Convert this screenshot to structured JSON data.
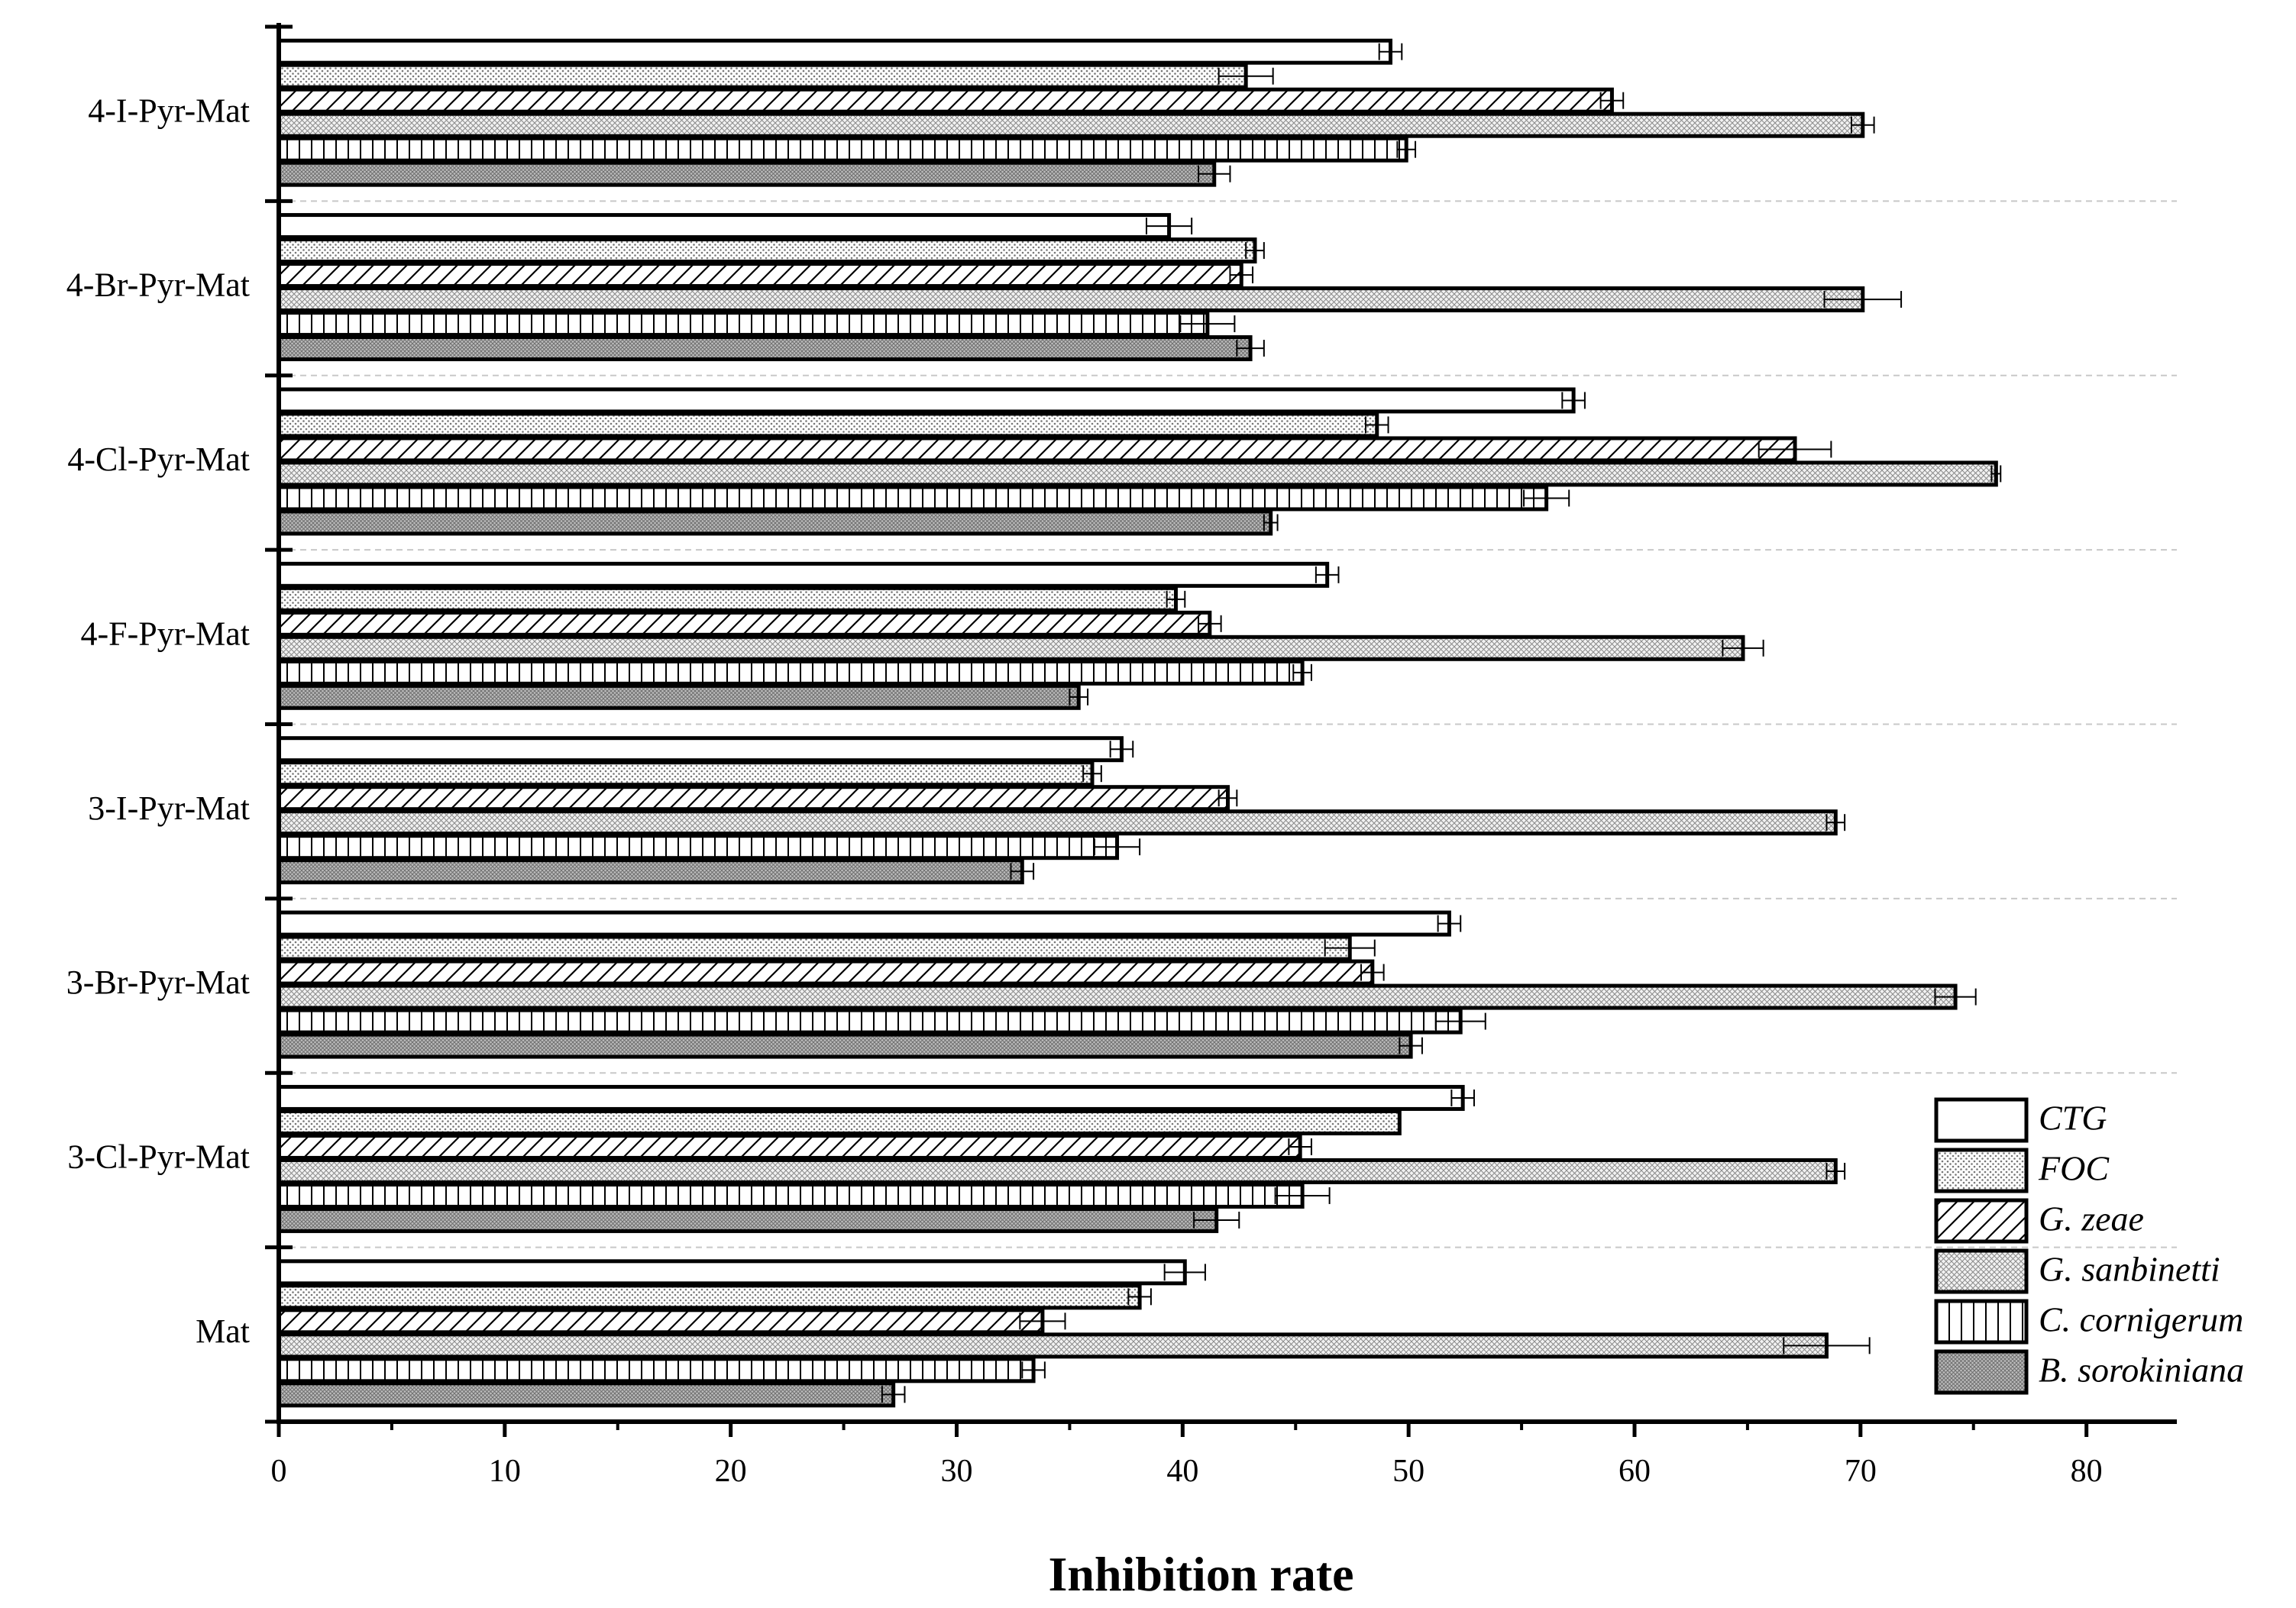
{
  "chart_data": {
    "type": "bar",
    "orientation": "horizontal",
    "xlabel": "Inhibition rate",
    "ylabel": "",
    "xlim": [
      0,
      84
    ],
    "xticks": [
      0,
      10,
      20,
      30,
      40,
      50,
      60,
      70,
      80
    ],
    "categories": [
      "4-I-Pyr-Mat",
      "4-Br-Pyr-Mat",
      "4-Cl-Pyr-Mat",
      "4-F-Pyr-Mat",
      "3-I-Pyr-Mat",
      "3-Br-Pyr-Mat",
      "3-Cl-Pyr-Mat",
      "Mat"
    ],
    "legend_position": "bottom-right",
    "series": [
      {
        "name": "CTG",
        "pattern": "solid-white",
        "values": [
          49.2,
          39.4,
          57.3,
          46.4,
          37.3,
          51.8,
          52.4,
          40.1
        ],
        "errors": [
          0.5,
          1.0,
          0.5,
          0.5,
          0.5,
          0.5,
          0.5,
          0.9
        ]
      },
      {
        "name": "FOC",
        "pattern": "dots",
        "values": [
          42.8,
          43.2,
          48.6,
          39.7,
          36.0,
          47.4,
          49.6,
          38.1
        ],
        "errors": [
          1.2,
          0.4,
          0.5,
          0.4,
          0.4,
          1.1,
          0.0,
          0.5
        ]
      },
      {
        "name": "G. zeae",
        "pattern": "diagonal",
        "values": [
          59.0,
          42.6,
          67.1,
          41.2,
          42.0,
          48.4,
          45.2,
          33.8
        ],
        "errors": [
          0.5,
          0.5,
          1.6,
          0.5,
          0.4,
          0.5,
          0.5,
          1.0
        ]
      },
      {
        "name": "G. sanbinetti",
        "pattern": "crosshatch",
        "values": [
          70.1,
          70.1,
          76.0,
          64.8,
          68.9,
          74.2,
          68.9,
          68.5
        ],
        "errors": [
          0.5,
          1.7,
          0.2,
          0.9,
          0.4,
          0.9,
          0.4,
          1.9
        ]
      },
      {
        "name": "C. cornigerum",
        "pattern": "vertical",
        "values": [
          49.9,
          41.1,
          56.1,
          45.3,
          37.1,
          52.3,
          45.3,
          33.4
        ],
        "errors": [
          0.4,
          1.2,
          1.0,
          0.4,
          1.0,
          1.1,
          1.2,
          0.5
        ]
      },
      {
        "name": "B. sorokiniana",
        "pattern": "dense-grey",
        "values": [
          41.4,
          43.0,
          43.9,
          35.4,
          32.9,
          50.1,
          41.5,
          27.2
        ],
        "errors": [
          0.7,
          0.6,
          0.3,
          0.4,
          0.5,
          0.5,
          1.0,
          0.5
        ]
      }
    ]
  }
}
